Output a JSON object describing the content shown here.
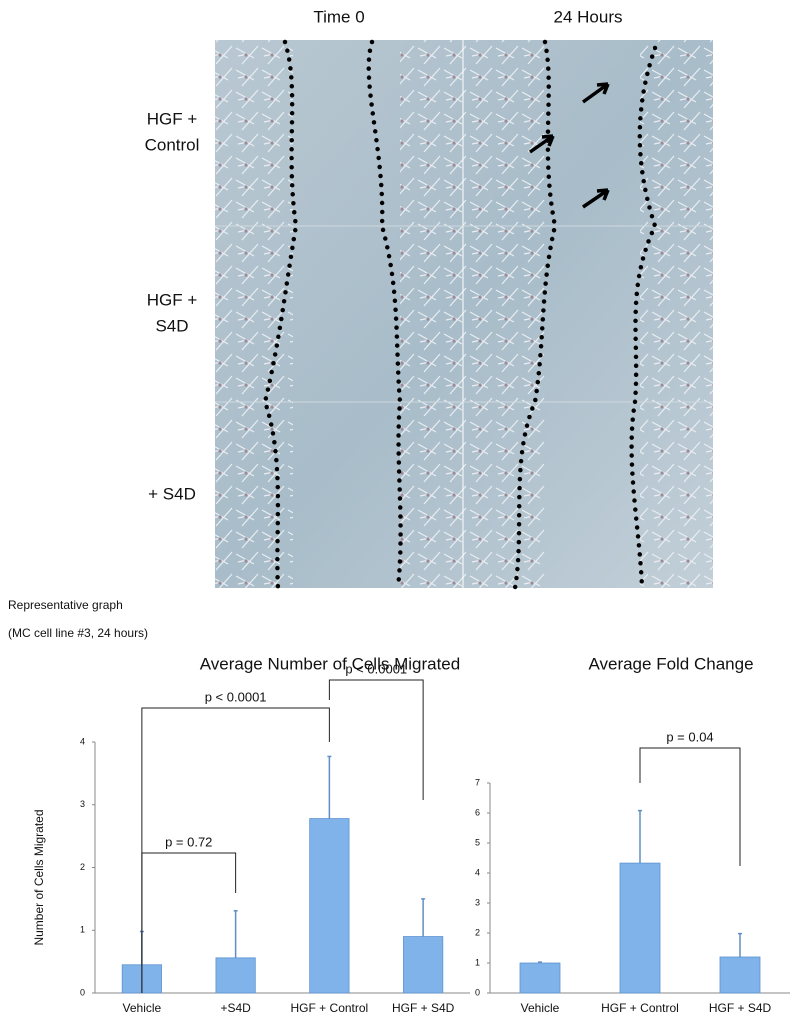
{
  "figure": {
    "column_headers": [
      "Time 0",
      "24 Hours"
    ],
    "row_labels": [
      [
        "HGF +",
        "Control"
      ],
      [
        "HGF +",
        "S4D"
      ],
      [
        "+ S4D"
      ]
    ],
    "caption_lines": [
      "Representative graph",
      "(MC cell line #3, 24 hours)"
    ]
  },
  "chart_data": [
    {
      "type": "bar",
      "title": "Average Number of Cells Migrated",
      "y_label": "Number of Cells Migrated",
      "categories": [
        "Vehicle",
        "+S4D",
        "HGF + Control",
        "HGF + S4D"
      ],
      "values": [
        0.45,
        0.56,
        2.78,
        0.9
      ],
      "errors": [
        0.53,
        0.75,
        0.99,
        0.6
      ],
      "color": "#7fb3ea",
      "ylim": [
        0,
        4
      ],
      "yticks": [
        0,
        1,
        2,
        3,
        4
      ],
      "annotations": [
        "p < 0.0001",
        "p < 0.0001",
        "p = 0.72"
      ]
    },
    {
      "type": "bar",
      "title": "Average Fold Change",
      "categories": [
        "Vehicle",
        "HGF + Control",
        "HGF + S4D"
      ],
      "values": [
        1.0,
        4.33,
        1.2
      ],
      "errors": [
        0.03,
        1.75,
        0.78
      ],
      "color": "#7fb3ea",
      "ylim": [
        0,
        7
      ],
      "yticks": [
        0,
        1,
        2,
        3,
        4,
        5,
        6,
        7
      ],
      "annotations": [
        "p = 0.04"
      ]
    }
  ]
}
